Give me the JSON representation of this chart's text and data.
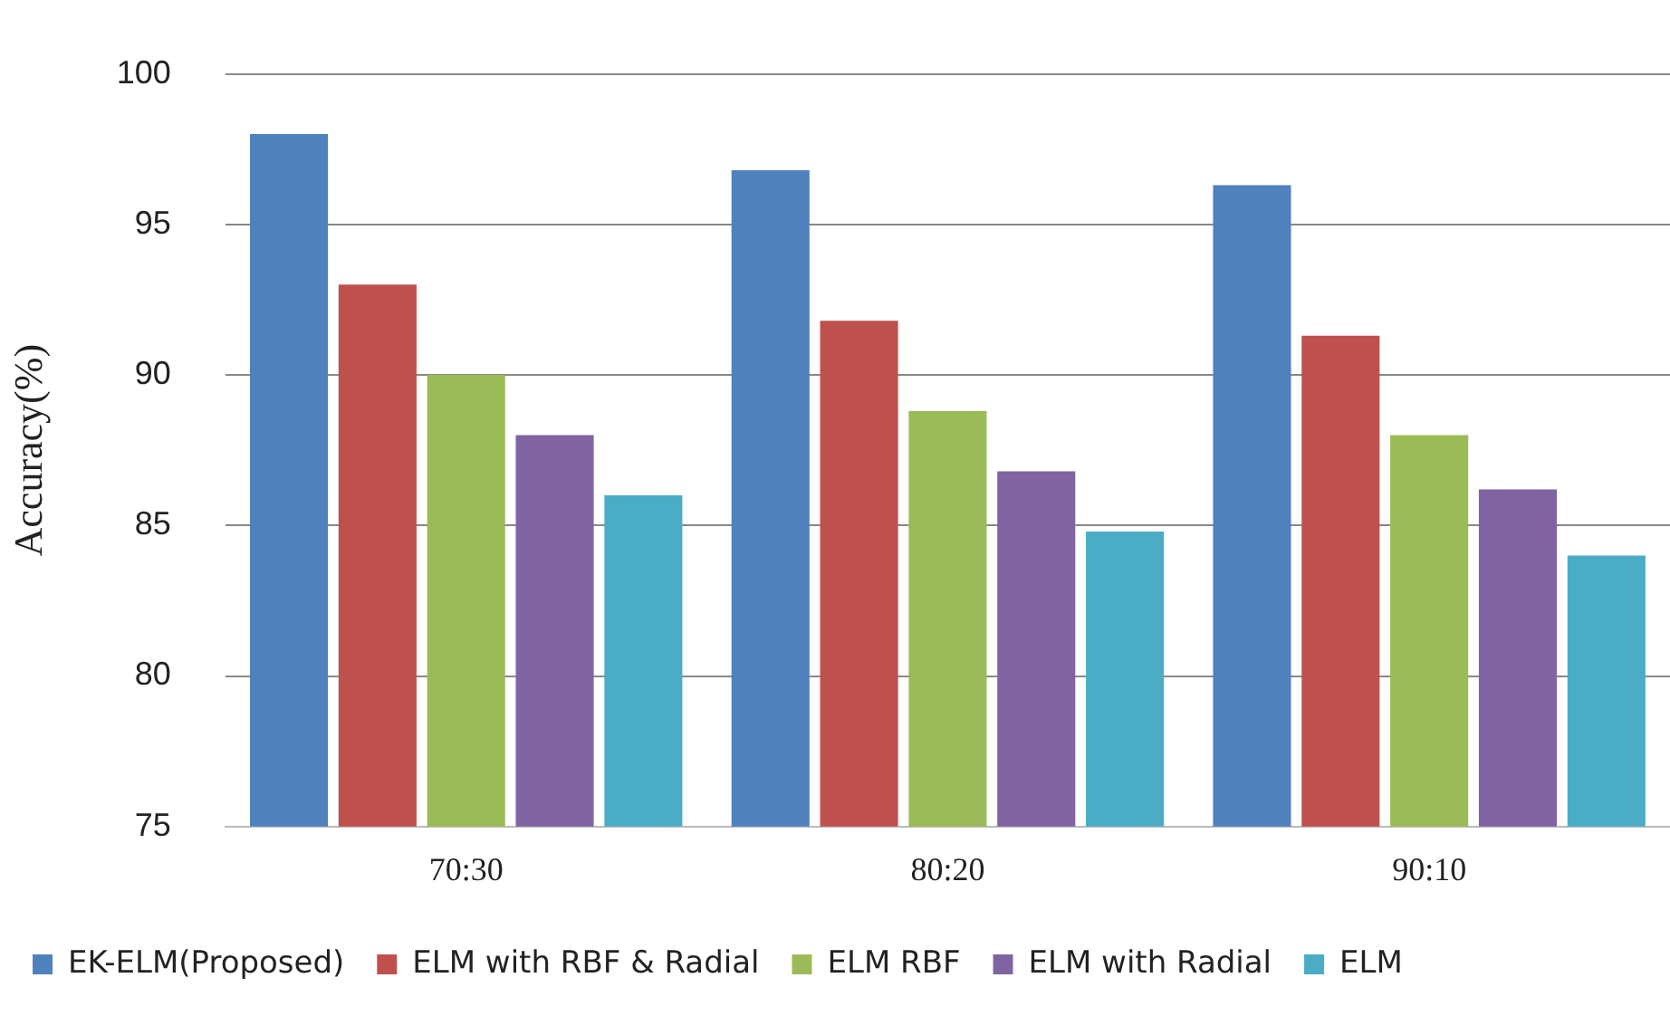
{
  "chart_data": {
    "type": "bar",
    "ylabel": "Accuracy(%)",
    "categories": [
      "70:30",
      "80:20",
      "90:10"
    ],
    "series": [
      {
        "name": "EK-ELM(Proposed)",
        "color": "#4f81bd",
        "values": [
          98.0,
          96.8,
          96.3
        ]
      },
      {
        "name": "ELM with RBF & Radial",
        "color": "#c0504d",
        "values": [
          93.0,
          91.8,
          91.3
        ]
      },
      {
        "name": "ELM RBF",
        "color": "#9bbb59",
        "values": [
          90.0,
          88.8,
          88.0
        ]
      },
      {
        "name": "ELM with Radial",
        "color": "#8064a2",
        "values": [
          88.0,
          86.8,
          86.2
        ]
      },
      {
        "name": "ELM",
        "color": "#4bacc6",
        "values": [
          86.0,
          84.8,
          84.0
        ]
      }
    ],
    "ylim": [
      75,
      100
    ],
    "yticks": [
      75,
      80,
      85,
      90,
      95,
      100
    ],
    "grid": "y",
    "legend": "bottom"
  }
}
